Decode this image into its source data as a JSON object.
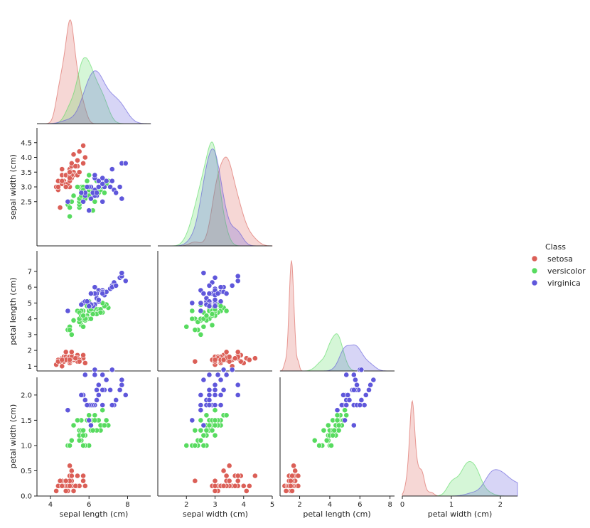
{
  "chart_data": {
    "type": "scatter",
    "kind": "pairplot",
    "layout": "lower-triangle corner",
    "diagonal_kind": "kde",
    "variables": [
      "sepal length (cm)",
      "sepal width (cm)",
      "petal length (cm)",
      "petal width (cm)"
    ],
    "axis_ranges": {
      "sepal length (cm)": [
        3.3,
        9.2
      ],
      "sepal width (cm)": [
        1.0,
        5.0
      ],
      "petal length (cm)": [
        0.7,
        8.3
      ],
      "petal width (cm)": [
        0.0,
        2.35
      ]
    },
    "ticks": {
      "sepal length (cm)": [
        4,
        6,
        8
      ],
      "sepal width (cm)": [
        2,
        3,
        4,
        5
      ],
      "sepal width (cm) y": [
        2.5,
        3.0,
        3.5,
        4.0,
        4.5
      ],
      "petal length (cm)": [
        2,
        4,
        6,
        8
      ],
      "petal length (cm) y": [
        1,
        2,
        3,
        4,
        5,
        6,
        7
      ],
      "petal width (cm)": [
        0,
        1,
        2
      ],
      "petal width (cm) y": [
        0.0,
        0.5,
        1.0,
        1.5,
        2.0
      ]
    },
    "tick_labels": {
      "sepal length (cm)": [
        "4",
        "6",
        "8"
      ],
      "sepal width (cm)": [
        "2",
        "3",
        "4",
        "5"
      ],
      "sepal width (cm) y": [
        "2.5",
        "3.0",
        "3.5",
        "4.0",
        "4.5"
      ],
      "petal length (cm)": [
        "2",
        "4",
        "6",
        "8"
      ],
      "petal length (cm) y": [
        "1",
        "2",
        "3",
        "4",
        "5",
        "6",
        "7"
      ],
      "petal width (cm)": [
        "0",
        "1",
        "2"
      ],
      "petal width (cm) y": [
        "0.0",
        "0.5",
        "1.0",
        "1.5",
        "2.0"
      ]
    },
    "grid": false,
    "legend": {
      "title": "Class",
      "placement": "center-right",
      "entries": [
        "setosa",
        "versicolor",
        "virginica"
      ]
    },
    "colors": {
      "setosa": "#db5f57",
      "versicolor": "#57db5f",
      "virginica": "#5f57db"
    },
    "series": [
      {
        "name": "setosa",
        "points": [
          [
            5.1,
            3.5,
            1.4,
            0.2
          ],
          [
            4.9,
            3.0,
            1.4,
            0.2
          ],
          [
            4.7,
            3.2,
            1.3,
            0.2
          ],
          [
            4.6,
            3.1,
            1.5,
            0.2
          ],
          [
            5.0,
            3.6,
            1.4,
            0.2
          ],
          [
            5.4,
            3.9,
            1.7,
            0.4
          ],
          [
            4.6,
            3.4,
            1.4,
            0.3
          ],
          [
            5.0,
            3.4,
            1.5,
            0.2
          ],
          [
            4.4,
            2.9,
            1.4,
            0.2
          ],
          [
            4.9,
            3.1,
            1.5,
            0.1
          ],
          [
            5.4,
            3.7,
            1.5,
            0.2
          ],
          [
            4.8,
            3.4,
            1.6,
            0.2
          ],
          [
            4.8,
            3.0,
            1.4,
            0.1
          ],
          [
            4.3,
            3.0,
            1.1,
            0.1
          ],
          [
            5.8,
            4.0,
            1.2,
            0.2
          ],
          [
            5.7,
            4.4,
            1.5,
            0.4
          ],
          [
            5.4,
            3.9,
            1.3,
            0.4
          ],
          [
            5.1,
            3.5,
            1.4,
            0.3
          ],
          [
            5.7,
            3.8,
            1.7,
            0.3
          ],
          [
            5.1,
            3.8,
            1.5,
            0.3
          ],
          [
            5.4,
            3.4,
            1.7,
            0.2
          ],
          [
            5.1,
            3.7,
            1.5,
            0.4
          ],
          [
            4.6,
            3.6,
            1.0,
            0.2
          ],
          [
            5.1,
            3.3,
            1.7,
            0.5
          ],
          [
            4.8,
            3.4,
            1.9,
            0.2
          ],
          [
            5.0,
            3.0,
            1.6,
            0.2
          ],
          [
            5.0,
            3.4,
            1.6,
            0.4
          ],
          [
            5.2,
            3.5,
            1.5,
            0.2
          ],
          [
            5.2,
            3.4,
            1.4,
            0.2
          ],
          [
            4.7,
            3.2,
            1.6,
            0.2
          ],
          [
            4.8,
            3.1,
            1.6,
            0.2
          ],
          [
            5.4,
            3.4,
            1.5,
            0.4
          ],
          [
            5.2,
            4.1,
            1.5,
            0.1
          ],
          [
            5.5,
            4.2,
            1.4,
            0.2
          ],
          [
            4.9,
            3.1,
            1.5,
            0.2
          ],
          [
            5.0,
            3.2,
            1.2,
            0.2
          ],
          [
            5.5,
            3.5,
            1.3,
            0.2
          ],
          [
            4.4,
            3.0,
            1.3,
            0.2
          ],
          [
            5.1,
            3.4,
            1.5,
            0.2
          ],
          [
            5.0,
            3.5,
            1.3,
            0.3
          ],
          [
            4.5,
            2.3,
            1.3,
            0.3
          ],
          [
            4.4,
            3.2,
            1.3,
            0.2
          ],
          [
            5.0,
            3.5,
            1.6,
            0.6
          ],
          [
            5.1,
            3.8,
            1.9,
            0.4
          ],
          [
            4.8,
            3.0,
            1.4,
            0.3
          ],
          [
            5.1,
            3.8,
            1.6,
            0.2
          ],
          [
            4.6,
            3.2,
            1.4,
            0.2
          ],
          [
            5.3,
            3.7,
            1.5,
            0.2
          ],
          [
            5.0,
            3.3,
            1.4,
            0.2
          ]
        ]
      },
      {
        "name": "versicolor",
        "points": [
          [
            7.0,
            3.2,
            4.7,
            1.4
          ],
          [
            6.4,
            3.2,
            4.5,
            1.5
          ],
          [
            6.9,
            3.1,
            4.9,
            1.5
          ],
          [
            5.5,
            2.3,
            4.0,
            1.3
          ],
          [
            6.5,
            2.8,
            4.6,
            1.5
          ],
          [
            5.7,
            2.8,
            4.5,
            1.3
          ],
          [
            6.3,
            3.3,
            4.7,
            1.6
          ],
          [
            4.9,
            2.4,
            3.3,
            1.0
          ],
          [
            6.6,
            2.9,
            4.6,
            1.3
          ],
          [
            5.2,
            2.7,
            3.9,
            1.4
          ],
          [
            5.0,
            2.0,
            3.5,
            1.0
          ],
          [
            5.9,
            3.0,
            4.2,
            1.5
          ],
          [
            6.0,
            2.2,
            4.0,
            1.0
          ],
          [
            6.1,
            2.9,
            4.7,
            1.4
          ],
          [
            5.6,
            2.9,
            3.6,
            1.3
          ],
          [
            6.7,
            3.1,
            4.4,
            1.4
          ],
          [
            5.6,
            3.0,
            4.5,
            1.5
          ],
          [
            5.8,
            2.7,
            4.1,
            1.0
          ],
          [
            6.2,
            2.2,
            4.5,
            1.5
          ],
          [
            5.6,
            2.5,
            3.9,
            1.1
          ],
          [
            5.9,
            3.2,
            4.8,
            1.8
          ],
          [
            6.1,
            2.8,
            4.0,
            1.3
          ],
          [
            6.3,
            2.5,
            4.9,
            1.5
          ],
          [
            6.4,
            2.9,
            4.3,
            1.3
          ],
          [
            6.6,
            3.0,
            4.4,
            1.4
          ],
          [
            6.8,
            2.8,
            4.8,
            1.4
          ],
          [
            6.7,
            3.0,
            5.0,
            1.7
          ],
          [
            6.0,
            2.9,
            4.5,
            1.5
          ],
          [
            5.7,
            2.6,
            3.5,
            1.0
          ],
          [
            5.5,
            2.4,
            3.8,
            1.1
          ],
          [
            5.8,
            2.7,
            3.9,
            1.2
          ],
          [
            6.0,
            2.7,
            5.1,
            1.6
          ],
          [
            5.4,
            3.0,
            4.5,
            1.5
          ],
          [
            6.0,
            3.4,
            4.5,
            1.6
          ],
          [
            5.5,
            2.5,
            4.0,
            1.3
          ],
          [
            5.5,
            2.6,
            4.4,
            1.2
          ],
          [
            6.1,
            3.0,
            4.6,
            1.4
          ],
          [
            5.8,
            2.6,
            4.0,
            1.2
          ],
          [
            5.0,
            2.3,
            3.3,
            1.0
          ],
          [
            5.6,
            2.7,
            4.2,
            1.3
          ],
          [
            5.7,
            3.0,
            4.2,
            1.2
          ],
          [
            5.7,
            2.9,
            4.2,
            1.3
          ],
          [
            6.2,
            2.9,
            4.3,
            1.3
          ],
          [
            5.1,
            2.5,
            3.0,
            1.1
          ]
        ]
      },
      {
        "name": "virginica",
        "points": [
          [
            6.3,
            3.3,
            6.0,
            2.5
          ],
          [
            5.8,
            2.7,
            5.1,
            1.9
          ],
          [
            7.1,
            3.0,
            5.9,
            2.1
          ],
          [
            6.3,
            2.9,
            5.6,
            1.8
          ],
          [
            6.5,
            3.0,
            5.8,
            2.2
          ],
          [
            7.6,
            3.0,
            6.6,
            2.1
          ],
          [
            4.9,
            2.5,
            4.5,
            1.7
          ],
          [
            7.3,
            2.9,
            6.3,
            1.8
          ],
          [
            6.7,
            2.5,
            5.8,
            1.8
          ],
          [
            7.2,
            3.6,
            6.1,
            2.5
          ],
          [
            6.5,
            3.2,
            5.1,
            2.0
          ],
          [
            6.4,
            2.7,
            5.3,
            1.9
          ],
          [
            6.8,
            3.0,
            5.5,
            2.1
          ],
          [
            5.7,
            2.5,
            5.0,
            2.0
          ],
          [
            5.8,
            2.8,
            5.1,
            2.4
          ],
          [
            7.7,
            3.8,
            6.7,
            2.2
          ],
          [
            7.7,
            2.6,
            6.9,
            2.3
          ],
          [
            6.0,
            2.2,
            5.0,
            1.5
          ],
          [
            6.9,
            3.2,
            5.7,
            2.3
          ],
          [
            5.6,
            2.8,
            4.9,
            2.0
          ],
          [
            6.3,
            2.7,
            4.9,
            1.8
          ],
          [
            6.7,
            3.3,
            5.7,
            2.1
          ],
          [
            7.2,
            3.2,
            6.0,
            1.8
          ],
          [
            6.2,
            2.8,
            4.8,
            1.8
          ],
          [
            6.1,
            3.0,
            4.9,
            1.8
          ],
          [
            6.4,
            2.8,
            5.6,
            2.1
          ],
          [
            7.4,
            2.8,
            6.1,
            1.9
          ],
          [
            7.9,
            3.8,
            6.4,
            2.0
          ],
          [
            6.3,
            3.4,
            5.6,
            2.4
          ],
          [
            6.1,
            2.6,
            5.6,
            1.4
          ],
          [
            6.0,
            3.0,
            4.8,
            1.8
          ],
          [
            6.7,
            3.1,
            5.6,
            2.4
          ],
          [
            5.9,
            3.0,
            5.1,
            1.8
          ],
          [
            6.5,
            3.0,
            5.2,
            2.0
          ]
        ]
      }
    ]
  }
}
